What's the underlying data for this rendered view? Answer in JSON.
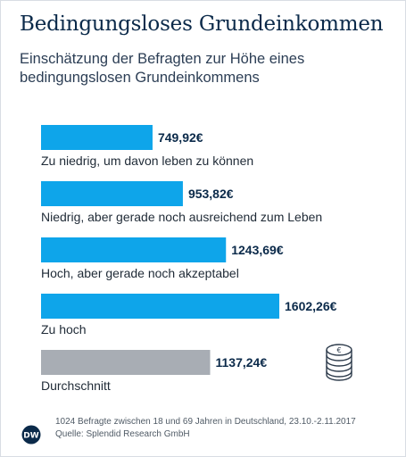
{
  "header": {
    "title": "Bedingungsloses Grundeinkommen",
    "subtitle": "Einschätzung der Befragten zur Höhe eines bedingungslosen Grundeinkommens"
  },
  "chart_data": {
    "type": "bar",
    "orientation": "horizontal",
    "categories": [
      "Zu niedrig, um davon leben zu können",
      "Niedrig, aber gerade noch ausreichend zum Leben",
      "Hoch, aber gerade noch akzeptabel",
      "Zu hoch",
      "Durchschnitt"
    ],
    "values": [
      749.92,
      953.82,
      1243.69,
      1602.26,
      1137.24
    ],
    "value_labels": [
      "749,92€",
      "953,82€",
      "1243,69€",
      "1602,26€",
      "1137,24€"
    ],
    "bar_colors": [
      "#0ea5ea",
      "#0ea5ea",
      "#0ea5ea",
      "#0ea5ea",
      "#a8adb4"
    ],
    "xlim": [
      0,
      1602.26
    ],
    "grid": false,
    "legend": "none"
  },
  "footer": {
    "note": "1024 Befragte zwischen 18 und 69 Jahren in Deutschland, 23.10.-2.11.2017",
    "source": "Quelle: Splendid Research GmbH"
  },
  "icons": {
    "coin": "euro-coin-stack-icon",
    "logo": "dw-logo-icon"
  },
  "colors": {
    "bar": "#0ea5ea",
    "average_bar": "#a8adb4",
    "title": "#0b2a4a",
    "value_label": "#0b2a4a"
  }
}
